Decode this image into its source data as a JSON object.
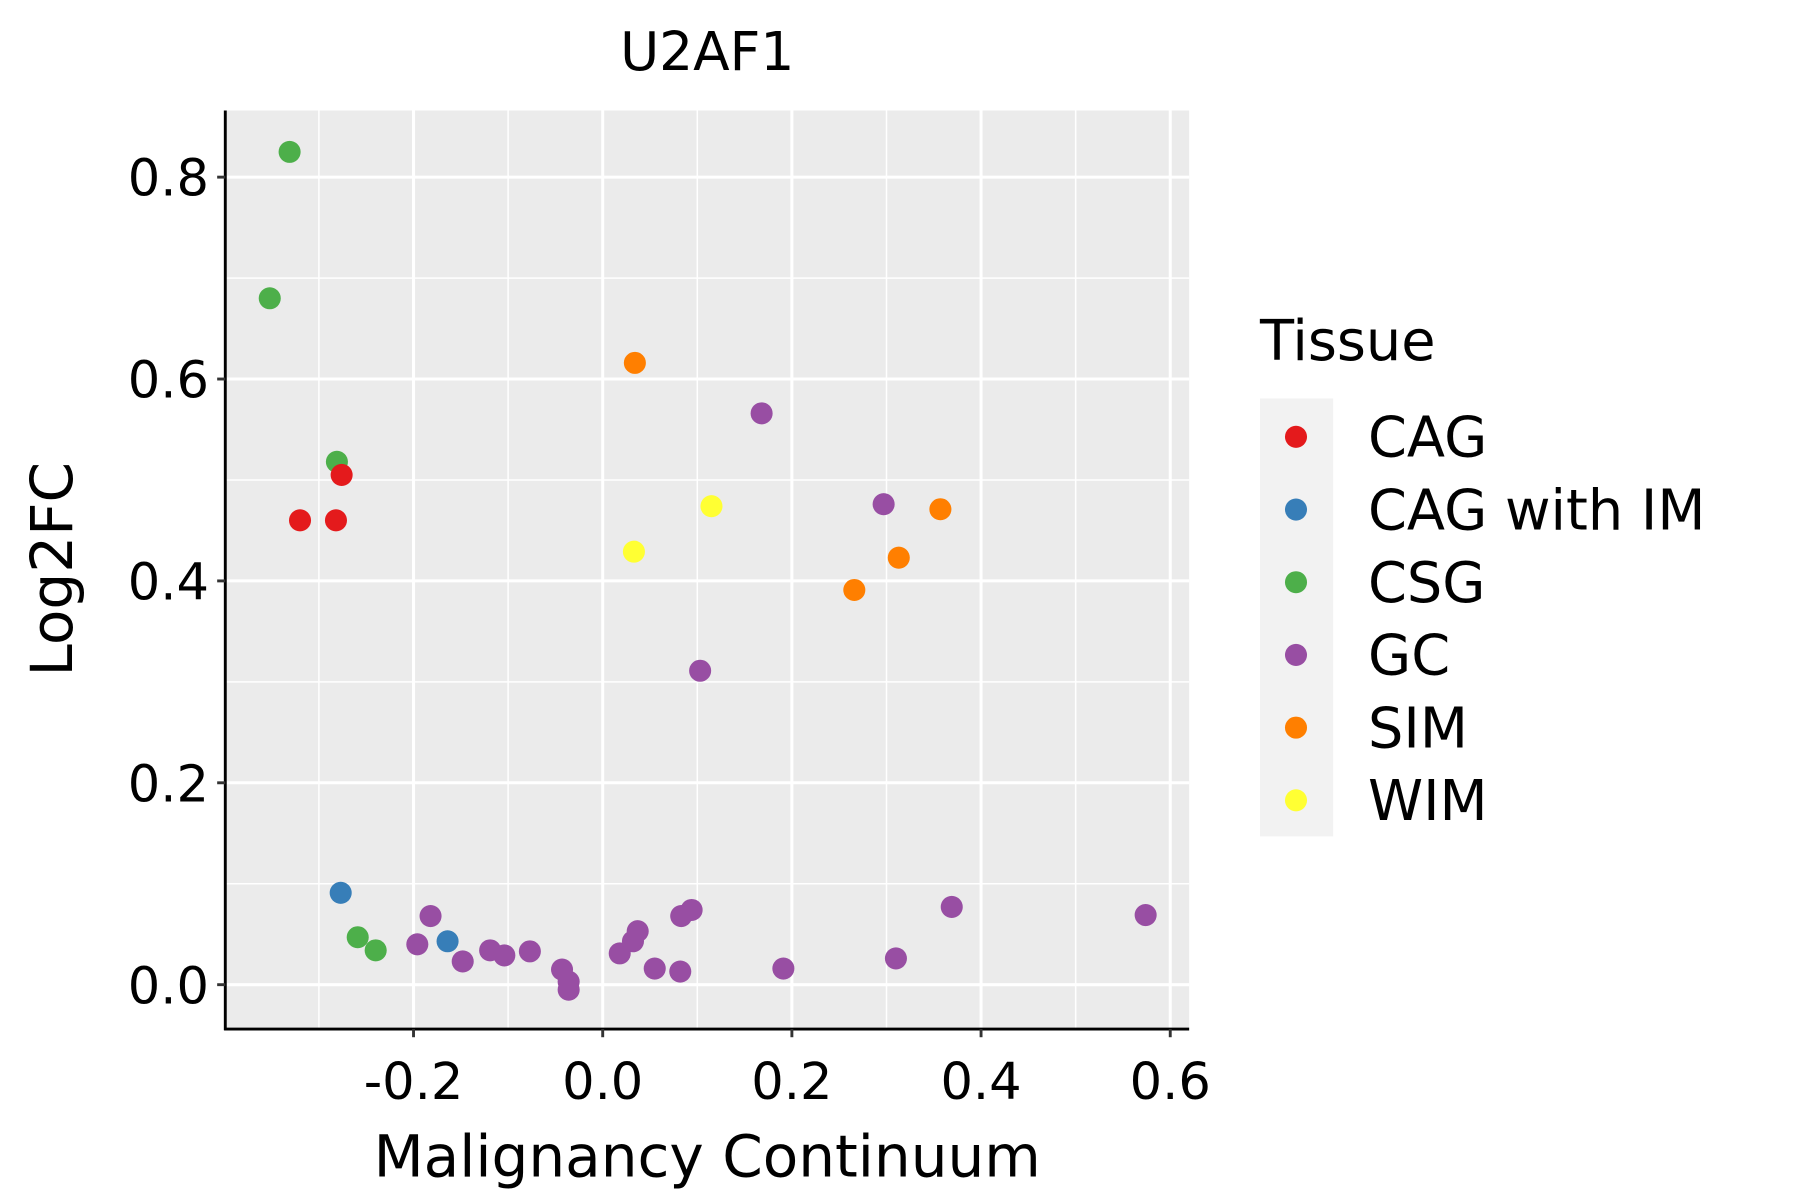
{
  "chart_data": {
    "type": "scatter",
    "title": "U2AF1",
    "xlabel": "Malignancy Continuum",
    "ylabel": "Log2FC",
    "xlim": [
      -0.399,
      0.62
    ],
    "ylim": [
      -0.044,
      0.866
    ],
    "xticks": [
      -0.2,
      0.0,
      0.2,
      0.4,
      0.6
    ],
    "xtick_labels": [
      "-0.2",
      "0.0",
      "0.2",
      "0.4",
      "0.6"
    ],
    "yticks": [
      0.0,
      0.2,
      0.4,
      0.6,
      0.8
    ],
    "ytick_labels": [
      "0.0",
      "0.2",
      "0.4",
      "0.6",
      "0.8"
    ],
    "grid": true,
    "legend": {
      "title": "Tissue",
      "placement": "right",
      "entries": [
        {
          "label": "CAG",
          "color": "#e41a1c"
        },
        {
          "label": "CAG with IM",
          "color": "#377eb8"
        },
        {
          "label": "CSG",
          "color": "#4daf4a"
        },
        {
          "label": "GC",
          "color": "#984ea3"
        },
        {
          "label": "SIM",
          "color": "#ff7f00"
        },
        {
          "label": "WIM",
          "color": "#ffff33"
        }
      ]
    },
    "points": [
      {
        "x": -0.331,
        "y": 0.825,
        "group": "CSG"
      },
      {
        "x": -0.352,
        "y": 0.68,
        "group": "CSG"
      },
      {
        "x": -0.281,
        "y": 0.518,
        "group": "CSG"
      },
      {
        "x": -0.259,
        "y": 0.047,
        "group": "CSG"
      },
      {
        "x": -0.24,
        "y": 0.034,
        "group": "CSG"
      },
      {
        "x": -0.276,
        "y": 0.505,
        "group": "CAG"
      },
      {
        "x": -0.32,
        "y": 0.46,
        "group": "CAG"
      },
      {
        "x": -0.282,
        "y": 0.46,
        "group": "CAG"
      },
      {
        "x": -0.277,
        "y": 0.091,
        "group": "CAG with IM"
      },
      {
        "x": -0.164,
        "y": 0.043,
        "group": "CAG with IM"
      },
      {
        "x": 0.034,
        "y": 0.616,
        "group": "SIM"
      },
      {
        "x": 0.357,
        "y": 0.471,
        "group": "SIM"
      },
      {
        "x": 0.313,
        "y": 0.423,
        "group": "SIM"
      },
      {
        "x": 0.266,
        "y": 0.391,
        "group": "SIM"
      },
      {
        "x": 0.115,
        "y": 0.474,
        "group": "WIM"
      },
      {
        "x": 0.033,
        "y": 0.429,
        "group": "WIM"
      },
      {
        "x": 0.168,
        "y": 0.566,
        "group": "GC"
      },
      {
        "x": 0.297,
        "y": 0.476,
        "group": "GC"
      },
      {
        "x": 0.103,
        "y": 0.311,
        "group": "GC"
      },
      {
        "x": -0.182,
        "y": 0.068,
        "group": "GC"
      },
      {
        "x": -0.196,
        "y": 0.04,
        "group": "GC"
      },
      {
        "x": -0.148,
        "y": 0.023,
        "group": "GC"
      },
      {
        "x": -0.119,
        "y": 0.034,
        "group": "GC"
      },
      {
        "x": -0.104,
        "y": 0.029,
        "group": "GC"
      },
      {
        "x": -0.077,
        "y": 0.033,
        "group": "GC"
      },
      {
        "x": -0.043,
        "y": 0.015,
        "group": "GC"
      },
      {
        "x": -0.036,
        "y": 0.003,
        "group": "GC"
      },
      {
        "x": -0.036,
        "y": -0.005,
        "group": "GC"
      },
      {
        "x": 0.018,
        "y": 0.031,
        "group": "GC"
      },
      {
        "x": 0.032,
        "y": 0.043,
        "group": "GC"
      },
      {
        "x": 0.037,
        "y": 0.053,
        "group": "GC"
      },
      {
        "x": 0.055,
        "y": 0.016,
        "group": "GC"
      },
      {
        "x": 0.083,
        "y": 0.068,
        "group": "GC"
      },
      {
        "x": 0.094,
        "y": 0.074,
        "group": "GC"
      },
      {
        "x": 0.082,
        "y": 0.013,
        "group": "GC"
      },
      {
        "x": 0.191,
        "y": 0.016,
        "group": "GC"
      },
      {
        "x": 0.31,
        "y": 0.026,
        "group": "GC"
      },
      {
        "x": 0.369,
        "y": 0.077,
        "group": "GC"
      },
      {
        "x": 0.574,
        "y": 0.069,
        "group": "GC"
      }
    ]
  }
}
